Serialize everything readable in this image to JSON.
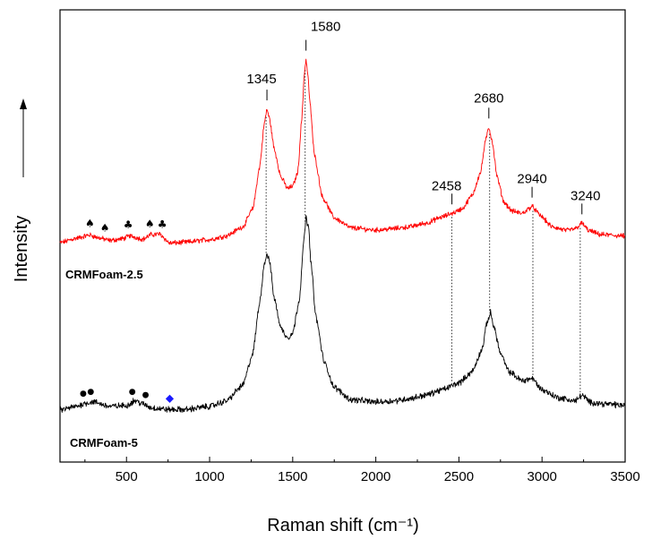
{
  "chart_data": {
    "type": "line",
    "title": "",
    "xlabel": "Raman shift (cm⁻¹)",
    "ylabel": "Intensity",
    "xlim": [
      100,
      3500
    ],
    "ylim": [
      0,
      100
    ],
    "x_ticks": [
      500,
      1000,
      1500,
      2000,
      2500,
      3000,
      3500
    ],
    "grid": false,
    "y_ticks_labeled": false,
    "series": [
      {
        "name": "CRMFoam-2.5",
        "color": "#ff0000",
        "baseline": 48,
        "noise": 0.45,
        "points": [
          [
            100,
            48.5
          ],
          [
            200,
            49.5
          ],
          [
            280,
            50.2
          ],
          [
            330,
            49.6
          ],
          [
            400,
            49.0
          ],
          [
            480,
            49.4
          ],
          [
            520,
            50.0
          ],
          [
            600,
            49.3
          ],
          [
            650,
            50.3
          ],
          [
            700,
            50.4
          ],
          [
            760,
            48.4
          ],
          [
            850,
            48.6
          ],
          [
            1000,
            49.2
          ],
          [
            1100,
            50.0
          ],
          [
            1200,
            52.0
          ],
          [
            1260,
            56.0
          ],
          [
            1300,
            65.0
          ],
          [
            1330,
            75.0
          ],
          [
            1345,
            78.0
          ],
          [
            1360,
            76.0
          ],
          [
            1390,
            69.0
          ],
          [
            1430,
            63.0
          ],
          [
            1470,
            60.5
          ],
          [
            1500,
            61.0
          ],
          [
            1530,
            64.0
          ],
          [
            1555,
            76.0
          ],
          [
            1570,
            86.0
          ],
          [
            1580,
            89.0
          ],
          [
            1590,
            86.0
          ],
          [
            1605,
            79.0
          ],
          [
            1630,
            68.0
          ],
          [
            1680,
            58.5
          ],
          [
            1750,
            54.0
          ],
          [
            1850,
            51.8
          ],
          [
            2000,
            51.3
          ],
          [
            2100,
            51.6
          ],
          [
            2200,
            52.0
          ],
          [
            2300,
            52.8
          ],
          [
            2400,
            54.2
          ],
          [
            2458,
            55.0
          ],
          [
            2520,
            56.0
          ],
          [
            2580,
            59.0
          ],
          [
            2630,
            64.0
          ],
          [
            2660,
            71.0
          ],
          [
            2680,
            74.0
          ],
          [
            2700,
            71.0
          ],
          [
            2730,
            63.0
          ],
          [
            2770,
            57.5
          ],
          [
            2820,
            55.5
          ],
          [
            2880,
            55.0
          ],
          [
            2940,
            56.5
          ],
          [
            2990,
            54.5
          ],
          [
            3060,
            52.0
          ],
          [
            3150,
            51.2
          ],
          [
            3200,
            51.6
          ],
          [
            3240,
            52.8
          ],
          [
            3280,
            51.2
          ],
          [
            3350,
            50.3
          ],
          [
            3500,
            50.0
          ]
        ]
      },
      {
        "name": "CRMFoam-5",
        "color": "#000000",
        "baseline": 11,
        "noise": 0.55,
        "points": [
          [
            100,
            11.5
          ],
          [
            200,
            12.3
          ],
          [
            250,
            13.0
          ],
          [
            300,
            13.3
          ],
          [
            400,
            12.3
          ],
          [
            500,
            12.5
          ],
          [
            550,
            13.6
          ],
          [
            600,
            12.8
          ],
          [
            650,
            12.0
          ],
          [
            760,
            11.6
          ],
          [
            850,
            11.6
          ],
          [
            1000,
            12.3
          ],
          [
            1100,
            13.5
          ],
          [
            1200,
            17.0
          ],
          [
            1260,
            24.0
          ],
          [
            1300,
            35.0
          ],
          [
            1330,
            44.0
          ],
          [
            1345,
            46.0
          ],
          [
            1360,
            44.5
          ],
          [
            1390,
            36.0
          ],
          [
            1430,
            29.5
          ],
          [
            1470,
            27.5
          ],
          [
            1500,
            28.5
          ],
          [
            1540,
            36.0
          ],
          [
            1565,
            48.0
          ],
          [
            1580,
            54.0
          ],
          [
            1595,
            52.0
          ],
          [
            1610,
            44.0
          ],
          [
            1640,
            32.0
          ],
          [
            1690,
            22.0
          ],
          [
            1750,
            16.5
          ],
          [
            1850,
            13.8
          ],
          [
            2000,
            13.3
          ],
          [
            2100,
            13.5
          ],
          [
            2200,
            14.0
          ],
          [
            2300,
            14.8
          ],
          [
            2400,
            16.0
          ],
          [
            2500,
            17.5
          ],
          [
            2580,
            20.0
          ],
          [
            2640,
            25.0
          ],
          [
            2670,
            31.0
          ],
          [
            2690,
            33.0
          ],
          [
            2710,
            30.0
          ],
          [
            2750,
            24.0
          ],
          [
            2800,
            20.0
          ],
          [
            2880,
            18.0
          ],
          [
            2940,
            18.5
          ],
          [
            3000,
            16.0
          ],
          [
            3100,
            14.2
          ],
          [
            3200,
            13.5
          ],
          [
            3240,
            14.8
          ],
          [
            3290,
            13.2
          ],
          [
            3400,
            12.8
          ],
          [
            3500,
            12.5
          ]
        ]
      }
    ],
    "peak_annotations": [
      {
        "label": "1345",
        "x": 1345
      },
      {
        "label": "1580",
        "x": 1580
      },
      {
        "label": "2680",
        "x": 2680
      },
      {
        "label": "2458",
        "x": 2458
      },
      {
        "label": "2940",
        "x": 2940
      },
      {
        "label": "3240",
        "x": 3240
      }
    ],
    "dotted_guides": [
      1340,
      1575,
      2458,
      2685,
      2945,
      3230
    ],
    "series_labels": [
      "CRMFoam-2.5",
      "CRMFoam-5"
    ],
    "markers": [
      {
        "series": "CRMFoam-2.5",
        "symbol": "♠",
        "x": 280,
        "color": "#000000"
      },
      {
        "series": "CRMFoam-2.5",
        "symbol": "♠",
        "x": 370,
        "color": "#000000"
      },
      {
        "series": "CRMFoam-2.5",
        "symbol": "♣",
        "x": 510,
        "color": "#000000"
      },
      {
        "series": "CRMFoam-2.5",
        "symbol": "♠",
        "x": 640,
        "color": "#000000"
      },
      {
        "series": "CRMFoam-2.5",
        "symbol": "♣",
        "x": 715,
        "color": "#000000"
      },
      {
        "series": "CRMFoam-5",
        "symbol": "●",
        "x": 240,
        "color": "#000000"
      },
      {
        "series": "CRMFoam-5",
        "symbol": "●",
        "x": 285,
        "color": "#000000"
      },
      {
        "series": "CRMFoam-5",
        "symbol": "●",
        "x": 535,
        "color": "#000000"
      },
      {
        "series": "CRMFoam-5",
        "symbol": "●",
        "x": 615,
        "color": "#000000"
      },
      {
        "series": "CRMFoam-5",
        "symbol": "◆",
        "x": 760,
        "color": "#1a1aff"
      }
    ]
  }
}
